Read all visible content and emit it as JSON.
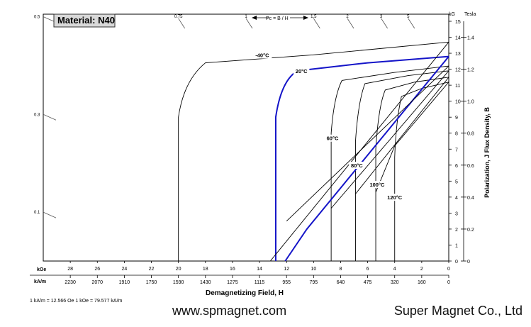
{
  "material_label": "Material: N40",
  "pc_label": "Pc = B / H",
  "conversion_note": "1 kA/m = 12.566 Oe     1 kOe = 79.577 kA/m",
  "website": "www.spmagnet.com",
  "company": "Super Magnet Co., Ltd",
  "colors": {
    "highlight": "#1414c8",
    "curve": "#000000",
    "axis": "#000000"
  },
  "chart_data": {
    "type": "line",
    "title": "Material: N40",
    "xlabel": "Demagnetizing Field, H",
    "ylabel": "Polarization, J    Flux Density, B",
    "x_units_primary": "kOe",
    "x_units_secondary": "kA/m",
    "y_units_left": "kG",
    "y_units_right": "Tesla",
    "xlim_kOe": [
      30,
      0
    ],
    "ylim_kG": [
      0,
      15
    ],
    "x_ticks_kOe": [
      "28",
      "26",
      "24",
      "22",
      "20",
      "18",
      "16",
      "14",
      "12",
      "10",
      "8",
      "6",
      "4",
      "2",
      "0"
    ],
    "x_ticks_kAm": [
      "2230",
      "2070",
      "1910",
      "1750",
      "1590",
      "1430",
      "1275",
      "1115",
      "955",
      "795",
      "640",
      "475",
      "320",
      "160",
      "0"
    ],
    "y_ticks_kG": [
      "0",
      "1",
      "2",
      "3",
      "4",
      "5",
      "6",
      "7",
      "8",
      "9",
      "10",
      "11",
      "12",
      "13",
      "14",
      "15"
    ],
    "y_ticks_T": [
      "0",
      "0.2",
      "0.4",
      "0.6",
      "0.8",
      "1.0",
      "1.2",
      "1.4"
    ],
    "pc_ticks_top": [
      "0.75",
      "1",
      "1.5",
      "2",
      "3",
      "5"
    ],
    "pc_ticks_left": [
      "0.5",
      "0.3",
      "0.1"
    ],
    "series": [
      {
        "name": "-40°C",
        "kind": "J",
        "highlight": false,
        "points": [
          [
            20,
            0
          ],
          [
            20,
            9
          ],
          [
            19.6,
            11.3
          ],
          [
            18,
            12.4
          ],
          [
            10,
            12.9
          ],
          [
            0,
            13.7
          ]
        ]
      },
      {
        "name": "20°C",
        "kind": "J",
        "highlight": true,
        "points": [
          [
            12.8,
            0
          ],
          [
            12.8,
            9
          ],
          [
            12.4,
            11.3
          ],
          [
            11.2,
            11.9
          ],
          [
            6,
            12.4
          ],
          [
            0,
            12.8
          ]
        ]
      },
      {
        "name": "60°C",
        "kind": "J",
        "highlight": false,
        "points": [
          [
            8.7,
            0
          ],
          [
            8.7,
            8
          ],
          [
            8.5,
            10.3
          ],
          [
            7.9,
            11.3
          ],
          [
            4,
            11.8
          ],
          [
            0,
            12.2
          ]
        ]
      },
      {
        "name": "80°C",
        "kind": "J",
        "highlight": false,
        "points": [
          [
            6.9,
            0
          ],
          [
            6.9,
            7.5
          ],
          [
            6.7,
            10
          ],
          [
            6.2,
            11.1
          ],
          [
            3,
            11.6
          ],
          [
            0,
            11.9
          ]
        ]
      },
      {
        "name": "100°C",
        "kind": "J",
        "highlight": false,
        "points": [
          [
            5.4,
            0
          ],
          [
            5.4,
            7
          ],
          [
            5.2,
            9.7
          ],
          [
            4.7,
            10.7
          ],
          [
            2.5,
            11.2
          ],
          [
            0,
            11.5
          ]
        ]
      },
      {
        "name": "120°C",
        "kind": "J",
        "highlight": false,
        "points": [
          [
            4.0,
            0
          ],
          [
            4.0,
            6.5
          ],
          [
            3.9,
            8.8
          ],
          [
            3.5,
            10.3
          ],
          [
            2,
            10.8
          ],
          [
            0,
            11.2
          ]
        ]
      },
      {
        "name": "",
        "kind": "B",
        "highlight": false,
        "points": [
          [
            13.2,
            0
          ],
          [
            0,
            13.7
          ]
        ]
      },
      {
        "name": "",
        "kind": "B",
        "highlight": true,
        "points": [
          [
            12.1,
            0
          ],
          [
            10.5,
            2
          ],
          [
            0,
            12.8
          ]
        ]
      },
      {
        "name": "",
        "kind": "B",
        "highlight": false,
        "points": [
          [
            12.0,
            2.5
          ],
          [
            0,
            12.2
          ]
        ]
      },
      {
        "name": "",
        "kind": "B",
        "highlight": false,
        "points": [
          [
            8.7,
            3.3
          ],
          [
            0,
            11.9
          ]
        ]
      },
      {
        "name": "",
        "kind": "B",
        "highlight": false,
        "points": [
          [
            6.9,
            4.2
          ],
          [
            0,
            11.5
          ]
        ]
      },
      {
        "name": "",
        "kind": "B",
        "highlight": false,
        "points": [
          [
            5.4,
            4.3
          ],
          [
            4.0,
            7.2
          ],
          [
            0,
            11.2
          ]
        ]
      }
    ],
    "curve_labels": [
      {
        "text": "-40°C",
        "x": 13.8,
        "y": 12.8
      },
      {
        "text": "20°C",
        "x": 10.9,
        "y": 11.8
      },
      {
        "text": "60°C",
        "x": 8.6,
        "y": 7.6
      },
      {
        "text": "80°C",
        "x": 6.8,
        "y": 5.9
      },
      {
        "text": "100°C",
        "x": 5.3,
        "y": 4.7
      },
      {
        "text": "120°C",
        "x": 4.0,
        "y": 3.9
      }
    ]
  }
}
